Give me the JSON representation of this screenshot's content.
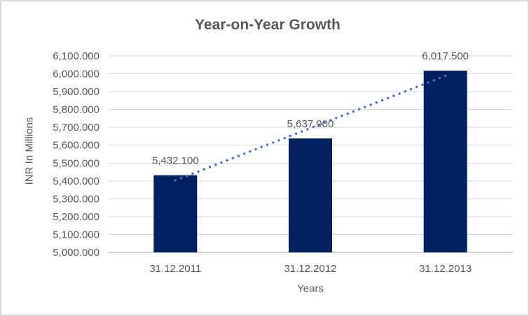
{
  "chart_data": {
    "type": "bar",
    "title": "Year-on-Year Growth",
    "categories": [
      "31.12.2011",
      "31.12.2012",
      "31.12.2013"
    ],
    "values": [
      5432.1,
      5637.9,
      6017.5
    ],
    "value_labels": [
      "5,432.100",
      "5,637.900",
      "6,017.500"
    ],
    "xlabel": "Years",
    "ylabel": "INR In Millions",
    "ylim": [
      5000,
      6100
    ],
    "ytick_step": 100,
    "ytick_labels": [
      "5,000.000",
      "5,100.000",
      "5,200.000",
      "5,300.000",
      "5,400.000",
      "5,500.000",
      "5,600.000",
      "5,700.000",
      "5,800.000",
      "5,900.000",
      "6,000.000",
      "6,100.000"
    ],
    "grid": true,
    "legend": "none",
    "trendline": {
      "type": "linear",
      "style": "dotted"
    },
    "colors": {
      "bar": "#002060",
      "trendline": "#4472C4",
      "gridline": "#D9D9D9",
      "axis_line": "#A6A6A6",
      "text": "#595959",
      "title": "#595959",
      "background": "#FFFFFF",
      "border": "#D9D9D9"
    }
  }
}
